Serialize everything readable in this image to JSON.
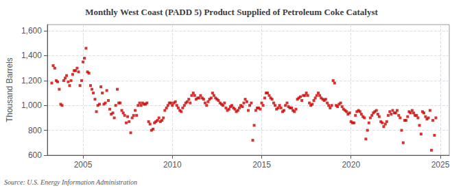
{
  "chart_data": {
    "type": "scatter",
    "title": "Monthly West Coast (PADD 5) Product Supplied of Petroleum Coke Catalyst",
    "ylabel": "Thousand Barrels",
    "annotations": [
      "Source: U.S. Energy Information Administration"
    ],
    "color": "#cc0000",
    "marker": "square",
    "grid": true,
    "xlim": [
      2003.0,
      2025.5
    ],
    "xticks": [
      2005,
      2010,
      2015,
      2020,
      2025
    ],
    "ylim": [
      600,
      1650
    ],
    "yticks": [
      600,
      800,
      {
        "value": 1000,
        "label": "1,000"
      },
      {
        "value": 1200,
        "label": "1,200"
      },
      {
        "value": 1400,
        "label": "1,400"
      },
      {
        "value": 1600,
        "label": "1,600"
      }
    ],
    "x": [
      2003.25,
      2003.33,
      2003.42,
      2003.5,
      2003.58,
      2003.67,
      2003.75,
      2003.83,
      2003.92,
      2004.0,
      2004.08,
      2004.17,
      2004.25,
      2004.33,
      2004.42,
      2004.5,
      2004.58,
      2004.67,
      2004.75,
      2004.83,
      2004.92,
      2005.0,
      2005.08,
      2005.17,
      2005.25,
      2005.33,
      2005.42,
      2005.5,
      2005.58,
      2005.67,
      2005.75,
      2005.83,
      2005.92,
      2006.0,
      2006.08,
      2006.17,
      2006.25,
      2006.33,
      2006.42,
      2006.5,
      2006.58,
      2006.67,
      2006.75,
      2006.83,
      2006.92,
      2007.0,
      2007.08,
      2007.17,
      2007.25,
      2007.33,
      2007.42,
      2007.5,
      2007.58,
      2007.67,
      2007.75,
      2007.83,
      2007.92,
      2008.0,
      2008.08,
      2008.17,
      2008.25,
      2008.33,
      2008.42,
      2008.5,
      2008.58,
      2008.67,
      2008.75,
      2008.83,
      2008.92,
      2009.0,
      2009.08,
      2009.17,
      2009.25,
      2009.33,
      2009.42,
      2009.5,
      2009.58,
      2009.67,
      2009.75,
      2009.83,
      2009.92,
      2010.0,
      2010.08,
      2010.17,
      2010.25,
      2010.33,
      2010.42,
      2010.5,
      2010.58,
      2010.67,
      2010.75,
      2010.83,
      2010.92,
      2011.0,
      2011.08,
      2011.17,
      2011.25,
      2011.33,
      2011.42,
      2011.5,
      2011.58,
      2011.67,
      2011.75,
      2011.83,
      2011.92,
      2012.0,
      2012.08,
      2012.17,
      2012.25,
      2012.33,
      2012.42,
      2012.5,
      2012.58,
      2012.67,
      2012.75,
      2012.83,
      2012.92,
      2013.0,
      2013.08,
      2013.17,
      2013.25,
      2013.33,
      2013.42,
      2013.5,
      2013.58,
      2013.67,
      2013.75,
      2013.83,
      2013.92,
      2014.0,
      2014.08,
      2014.17,
      2014.25,
      2014.33,
      2014.42,
      2014.5,
      2014.58,
      2014.67,
      2014.75,
      2014.83,
      2014.92,
      2015.0,
      2015.08,
      2015.17,
      2015.25,
      2015.33,
      2015.42,
      2015.5,
      2015.58,
      2015.67,
      2015.75,
      2015.83,
      2015.92,
      2016.0,
      2016.08,
      2016.17,
      2016.25,
      2016.33,
      2016.42,
      2016.5,
      2016.58,
      2016.67,
      2016.75,
      2016.83,
      2016.92,
      2017.0,
      2017.08,
      2017.17,
      2017.25,
      2017.33,
      2017.42,
      2017.5,
      2017.58,
      2017.67,
      2017.75,
      2017.83,
      2017.92,
      2018.0,
      2018.08,
      2018.17,
      2018.25,
      2018.33,
      2018.42,
      2018.5,
      2018.58,
      2018.67,
      2018.75,
      2018.83,
      2018.92,
      2019.0,
      2019.08,
      2019.17,
      2019.25,
      2019.33,
      2019.42,
      2019.5,
      2019.58,
      2019.67,
      2019.75,
      2019.83,
      2019.92,
      2020.0,
      2020.08,
      2020.17,
      2020.25,
      2020.33,
      2020.42,
      2020.5,
      2020.58,
      2020.67,
      2020.75,
      2020.83,
      2020.92,
      2021.0,
      2021.08,
      2021.17,
      2021.25,
      2021.33,
      2021.42,
      2021.5,
      2021.58,
      2021.67,
      2021.75,
      2021.83,
      2021.92,
      2022.0,
      2022.08,
      2022.17,
      2022.25,
      2022.33,
      2022.42,
      2022.5,
      2022.58,
      2022.67,
      2022.75,
      2022.83,
      2022.92,
      2023.0,
      2023.08,
      2023.17,
      2023.25,
      2023.33,
      2023.42,
      2023.5,
      2023.58,
      2023.67,
      2023.75,
      2023.83,
      2023.92,
      2024.0,
      2024.08,
      2024.17,
      2024.25,
      2024.33,
      2024.42,
      2024.5,
      2024.58,
      2024.67,
      2024.75
    ],
    "values": [
      1180,
      1320,
      1300,
      1200,
      1190,
      1130,
      1010,
      1000,
      1200,
      1220,
      1240,
      1190,
      1160,
      1200,
      1250,
      1280,
      1280,
      1300,
      1270,
      1160,
      1200,
      1350,
      1380,
      1460,
      1270,
      1260,
      1160,
      1130,
      1100,
      1050,
      950,
      1000,
      1010,
      1150,
      1100,
      1010,
      1020,
      1120,
      1040,
      970,
      930,
      940,
      900,
      1000,
      1130,
      1020,
      1020,
      960,
      940,
      920,
      860,
      910,
      870,
      780,
      900,
      920,
      960,
      920,
      1000,
      1020,
      1000,
      1020,
      1010,
      1010,
      1020,
      870,
      850,
      800,
      810,
      860,
      870,
      880,
      900,
      870,
      880,
      900,
      960,
      980,
      1000,
      1020,
      1020,
      1000,
      1020,
      1030,
      1000,
      980,
      960,
      950,
      980,
      1000,
      1020,
      1030,
      1050,
      1020,
      1080,
      1100,
      1080,
      1050,
      1060,
      1060,
      1080,
      1060,
      1050,
      1020,
      1000,
      1030,
      1050,
      1060,
      1100,
      1080,
      1060,
      1050,
      1040,
      1020,
      1010,
      1000,
      1020,
      980,
      960,
      970,
      990,
      1000,
      980,
      970,
      950,
      960,
      980,
      1000,
      990,
      1020,
      1050,
      1030,
      960,
      1000,
      1020,
      720,
      840,
      960,
      980,
      980,
      970,
      1020,
      1000,
      1060,
      1100,
      1100,
      1080,
      1060,
      1050,
      1020,
      1000,
      970,
      980,
      1000,
      980,
      950,
      960,
      1000,
      1020,
      990,
      980,
      980,
      960,
      950,
      970,
      1050,
      1060,
      1070,
      1040,
      1080,
      1080,
      1100,
      1080,
      1020,
      1000,
      1010,
      1040,
      1060,
      1080,
      1100,
      1080,
      1060,
      1050,
      1040,
      1050,
      1020,
      1000,
      980,
      1000,
      1200,
      1180,
      1000,
      990,
      1010,
      1020,
      990,
      970,
      960,
      950,
      930,
      940,
      870,
      860,
      860,
      920,
      950,
      960,
      950,
      930,
      910,
      900,
      730,
      800,
      860,
      900,
      920,
      940,
      950,
      960,
      930,
      910,
      870,
      860,
      830,
      850,
      870,
      920,
      950,
      930,
      960,
      940,
      940,
      960,
      920,
      900,
      800,
      700,
      880,
      880,
      910,
      950,
      940,
      960,
      940,
      920,
      920,
      900,
      840,
      770,
      950,
      940,
      910,
      890,
      900,
      960,
      640,
      880,
      760,
      900
    ]
  }
}
